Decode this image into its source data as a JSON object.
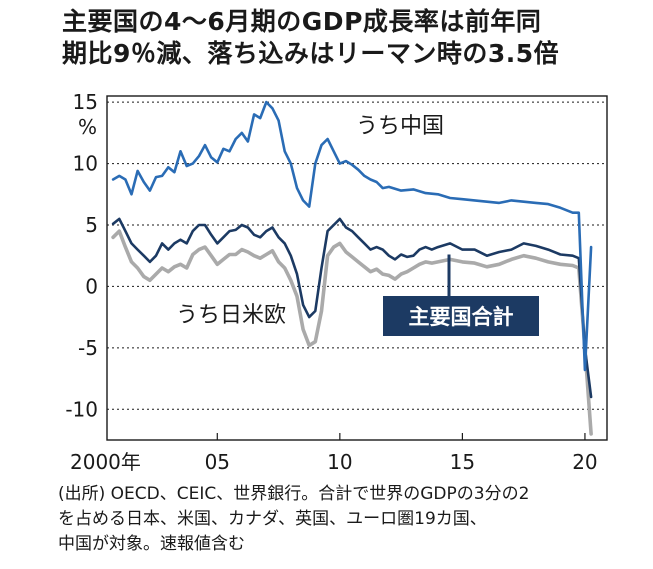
{
  "title": {
    "line1": "主要国の4～6月期のGDP成長率は前年同",
    "line2": "期比9％減、落ち込みはリーマン時の3.5倍"
  },
  "source": {
    "line1": "(出所) OECD、CEIC、世界銀行。合計で世界のGDPの3分の2",
    "line2": "を占める日本、米国、カナダ、英国、ユーロ圏19カ国、",
    "line3": "中国が対象。速報値含む"
  },
  "chart_data": {
    "type": "line",
    "ylabel": "%",
    "ylim": [
      -12.5,
      15.5
    ],
    "xlim": [
      2000.5,
      2020.9
    ],
    "yticks": [
      {
        "value": 15,
        "label": "15"
      },
      {
        "value": 10,
        "label": "10"
      },
      {
        "value": 5,
        "label": "5"
      },
      {
        "value": 0,
        "label": "0"
      },
      {
        "value": -5,
        "label": "-5"
      },
      {
        "value": -10,
        "label": "-10"
      }
    ],
    "xticks": [
      {
        "value": 2000,
        "label": "2000年"
      },
      {
        "value": 2005,
        "label": "05"
      },
      {
        "value": 2010,
        "label": "10"
      },
      {
        "value": 2015,
        "label": "15"
      },
      {
        "value": 2020,
        "label": "20"
      }
    ],
    "grid": "horizontal",
    "series": [
      {
        "name": "うち中国",
        "color": "#2a6cb5",
        "x": [
          2000.75,
          2001.0,
          2001.25,
          2001.5,
          2001.75,
          2002.0,
          2002.25,
          2002.5,
          2002.75,
          2003.0,
          2003.25,
          2003.5,
          2003.75,
          2004.0,
          2004.25,
          2004.5,
          2004.75,
          2005.0,
          2005.25,
          2005.5,
          2005.75,
          2006.0,
          2006.25,
          2006.5,
          2006.75,
          2007.0,
          2007.25,
          2007.5,
          2007.75,
          2008.0,
          2008.25,
          2008.5,
          2008.75,
          2009.0,
          2009.25,
          2009.5,
          2009.75,
          2010.0,
          2010.25,
          2010.5,
          2010.75,
          2011.0,
          2011.25,
          2011.5,
          2011.75,
          2012.0,
          2012.5,
          2013.0,
          2013.5,
          2014.0,
          2014.5,
          2015.0,
          2015.5,
          2016.0,
          2016.5,
          2017.0,
          2017.5,
          2018.0,
          2018.5,
          2019.0,
          2019.5,
          2019.75,
          2020.0,
          2020.25
        ],
        "values": [
          8.7,
          9.0,
          8.7,
          7.5,
          9.4,
          8.5,
          7.8,
          8.9,
          9.0,
          9.7,
          9.3,
          11.0,
          9.8,
          10.0,
          10.6,
          11.5,
          10.5,
          10.1,
          11.2,
          11.0,
          12.0,
          12.5,
          11.8,
          14.0,
          13.7,
          15.0,
          14.5,
          13.5,
          11.0,
          10.0,
          8.0,
          7.0,
          6.5,
          10.0,
          11.5,
          12.0,
          11.0,
          10.0,
          10.2,
          9.9,
          9.5,
          9.0,
          8.7,
          8.5,
          8.0,
          8.1,
          7.8,
          7.9,
          7.6,
          7.5,
          7.2,
          7.1,
          7.0,
          6.9,
          6.8,
          7.0,
          6.9,
          6.8,
          6.7,
          6.4,
          6.0,
          6.0,
          -6.8,
          3.2
        ]
      },
      {
        "name": "主要国合計",
        "color": "#1c3a63",
        "x": [
          2000.75,
          2001.0,
          2001.25,
          2001.5,
          2001.75,
          2002.0,
          2002.25,
          2002.5,
          2002.75,
          2003.0,
          2003.25,
          2003.5,
          2003.75,
          2004.0,
          2004.25,
          2004.5,
          2004.75,
          2005.0,
          2005.25,
          2005.5,
          2005.75,
          2006.0,
          2006.25,
          2006.5,
          2006.75,
          2007.0,
          2007.25,
          2007.5,
          2007.75,
          2008.0,
          2008.25,
          2008.5,
          2008.75,
          2009.0,
          2009.25,
          2009.5,
          2009.75,
          2010.0,
          2010.25,
          2010.5,
          2010.75,
          2011.0,
          2011.25,
          2011.5,
          2011.75,
          2012.0,
          2012.25,
          2012.5,
          2012.75,
          2013.0,
          2013.25,
          2013.5,
          2013.75,
          2014.0,
          2014.5,
          2015.0,
          2015.5,
          2016.0,
          2016.5,
          2017.0,
          2017.5,
          2018.0,
          2018.5,
          2019.0,
          2019.5,
          2019.75,
          2020.0,
          2020.25
        ],
        "values": [
          5.1,
          5.5,
          4.5,
          3.5,
          3.0,
          2.5,
          2.0,
          2.5,
          3.5,
          3.0,
          3.5,
          3.8,
          3.5,
          4.5,
          5.0,
          5.0,
          4.2,
          3.5,
          4.0,
          4.5,
          4.6,
          5.0,
          4.8,
          4.2,
          4.0,
          4.5,
          4.8,
          4.0,
          3.5,
          2.5,
          1.0,
          -1.5,
          -2.5,
          -2.0,
          1.5,
          4.5,
          5.0,
          5.5,
          4.8,
          4.5,
          4.0,
          3.5,
          3.0,
          3.2,
          3.0,
          2.5,
          2.2,
          2.6,
          2.4,
          2.5,
          3.0,
          3.2,
          3.0,
          3.2,
          3.5,
          3.0,
          3.0,
          2.5,
          2.8,
          3.0,
          3.5,
          3.3,
          3.0,
          2.6,
          2.5,
          2.3,
          -5.0,
          -9.0
        ]
      },
      {
        "name": "うち日米欧",
        "color": "#aaaaaa",
        "x": [
          2000.75,
          2001.0,
          2001.25,
          2001.5,
          2001.75,
          2002.0,
          2002.25,
          2002.5,
          2002.75,
          2003.0,
          2003.25,
          2003.5,
          2003.75,
          2004.0,
          2004.25,
          2004.5,
          2004.75,
          2005.0,
          2005.25,
          2005.5,
          2005.75,
          2006.0,
          2006.25,
          2006.5,
          2006.75,
          2007.0,
          2007.25,
          2007.5,
          2007.75,
          2008.0,
          2008.25,
          2008.5,
          2008.75,
          2009.0,
          2009.25,
          2009.5,
          2009.75,
          2010.0,
          2010.25,
          2010.5,
          2010.75,
          2011.0,
          2011.25,
          2011.5,
          2011.75,
          2012.0,
          2012.25,
          2012.5,
          2012.75,
          2013.0,
          2013.25,
          2013.5,
          2013.75,
          2014.0,
          2014.5,
          2015.0,
          2015.5,
          2016.0,
          2016.5,
          2017.0,
          2017.5,
          2018.0,
          2018.5,
          2019.0,
          2019.5,
          2019.75,
          2020.0,
          2020.25
        ],
        "values": [
          4.0,
          4.5,
          3.2,
          2.0,
          1.5,
          0.8,
          0.5,
          1.0,
          1.5,
          1.2,
          1.6,
          1.8,
          1.5,
          2.6,
          3.0,
          3.2,
          2.5,
          1.8,
          2.2,
          2.6,
          2.6,
          3.0,
          2.8,
          2.5,
          2.3,
          2.6,
          2.9,
          2.0,
          1.5,
          0.5,
          -0.8,
          -3.5,
          -4.8,
          -4.5,
          -2.0,
          2.5,
          3.2,
          3.5,
          2.8,
          2.4,
          2.0,
          1.6,
          1.2,
          1.4,
          1.0,
          0.9,
          0.6,
          1.0,
          1.2,
          1.5,
          1.8,
          2.0,
          1.9,
          2.0,
          2.2,
          2.0,
          1.9,
          1.6,
          1.8,
          2.2,
          2.5,
          2.3,
          2.0,
          1.8,
          1.7,
          1.5,
          -5.0,
          -12.0
        ]
      }
    ],
    "annotations": [
      {
        "text": "うち中国",
        "series": "うち中国"
      },
      {
        "text": "うち日米欧",
        "series": "うち日米欧"
      },
      {
        "text": "主要国合計",
        "series": "主要国合計",
        "style": "boxed"
      }
    ]
  }
}
